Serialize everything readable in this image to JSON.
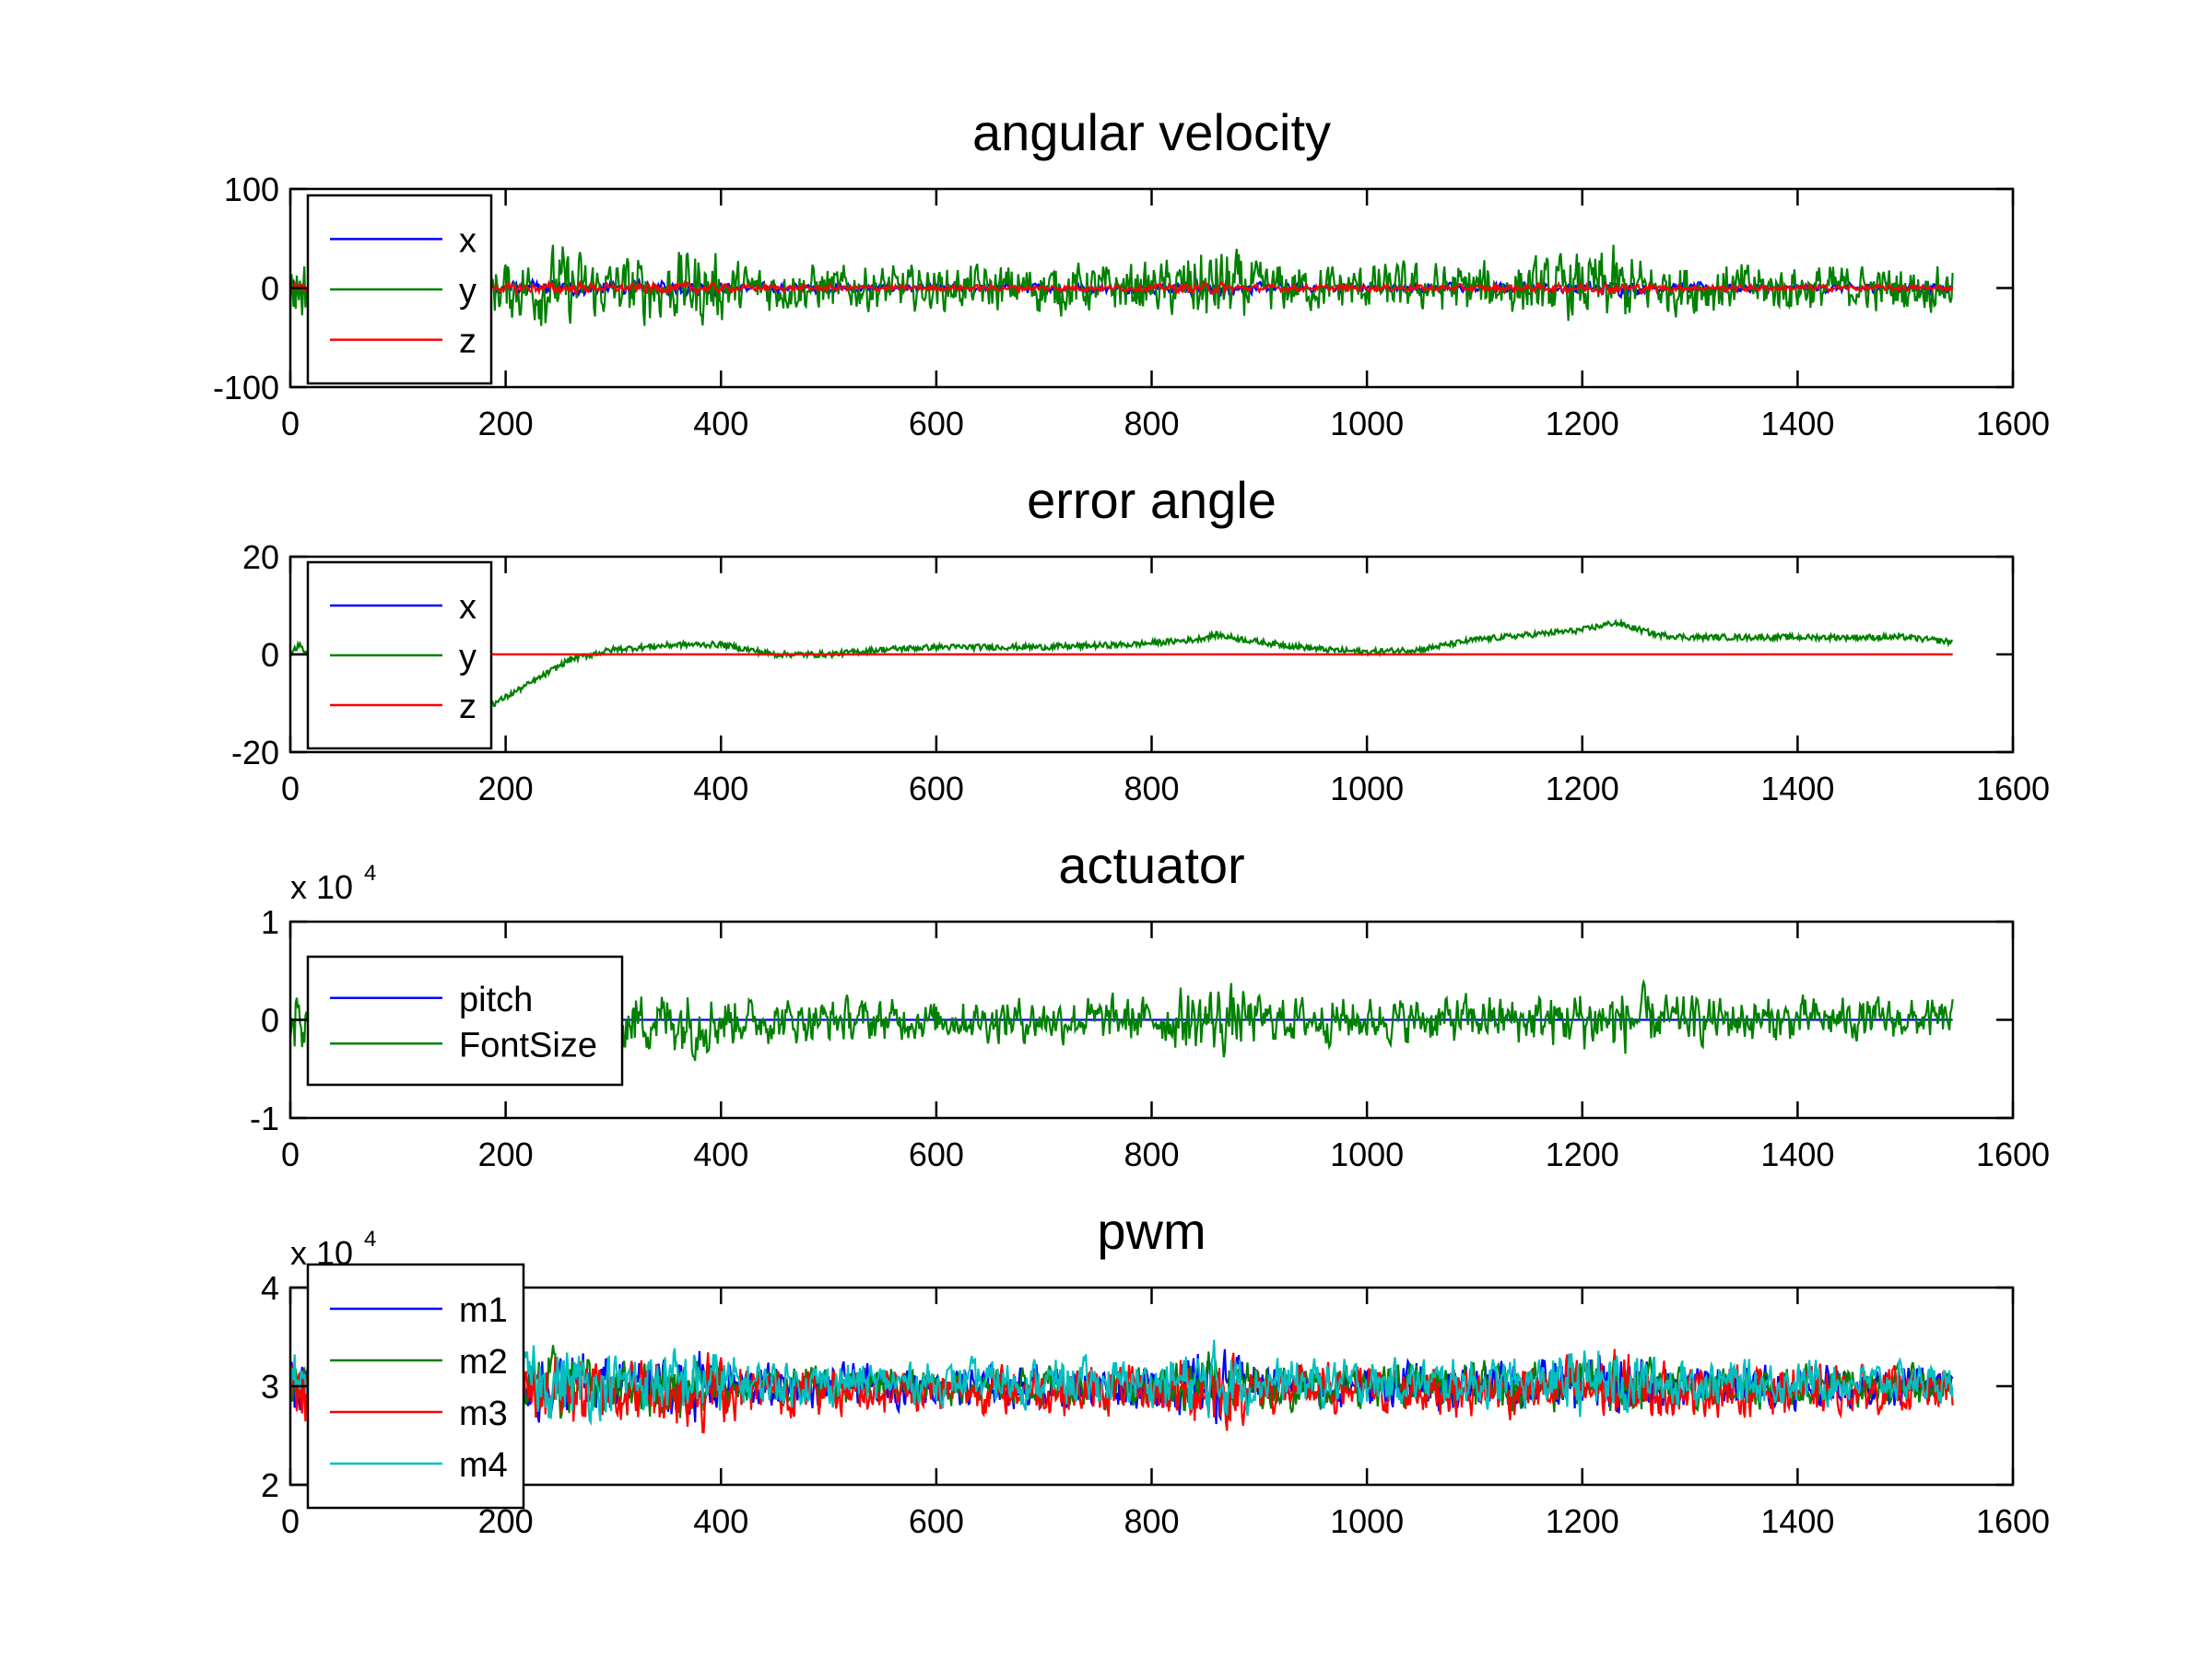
{
  "chart_data": [
    {
      "type": "line",
      "title": "angular velocity",
      "xlim": [
        0,
        1600
      ],
      "ylim": [
        -100,
        100
      ],
      "xticks": [
        "0",
        "200",
        "400",
        "600",
        "800",
        "1000",
        "1200",
        "1400",
        "1600"
      ],
      "yticks": [
        "-100",
        "0",
        "100"
      ],
      "ytick_values": [
        -100,
        0,
        100
      ],
      "exponent": null,
      "legend": {
        "placement": "top-left",
        "entries": [
          "x",
          "y",
          "z"
        ]
      },
      "n_samples": 1545,
      "series": [
        {
          "name": "x",
          "color": "#0000ff",
          "kind": "noise",
          "center": 0,
          "amplitude": 6
        },
        {
          "name": "y",
          "color": "#008000",
          "kind": "noise",
          "center": 0,
          "amplitude": 30
        },
        {
          "name": "z",
          "color": "#ff0000",
          "kind": "noise",
          "center": 0,
          "amplitude": 4
        }
      ]
    },
    {
      "type": "line",
      "title": "error angle",
      "xlim": [
        0,
        1600
      ],
      "ylim": [
        -20,
        20
      ],
      "xticks": [
        "0",
        "200",
        "400",
        "600",
        "800",
        "1000",
        "1200",
        "1400",
        "1600"
      ],
      "yticks": [
        "-20",
        "0",
        "20"
      ],
      "ytick_values": [
        -20,
        0,
        20
      ],
      "exponent": null,
      "legend": {
        "placement": "top-left",
        "entries": [
          "x",
          "y",
          "z"
        ]
      },
      "n_samples": 1545,
      "series": [
        {
          "name": "x",
          "color": "#0000ff",
          "kind": "trend",
          "points": [
            [
              0,
              0
            ],
            [
              1545,
              0
            ]
          ],
          "jitter": 0
        },
        {
          "name": "y",
          "color": "#008000",
          "kind": "trend",
          "points": [
            [
              0,
              0
            ],
            [
              8,
              2
            ],
            [
              15,
              0
            ],
            [
              60,
              -8
            ],
            [
              190,
              -10
            ],
            [
              230,
              -5
            ],
            [
              260,
              -1
            ],
            [
              300,
              1
            ],
            [
              360,
              2
            ],
            [
              400,
              2
            ],
            [
              450,
              0
            ],
            [
              500,
              0
            ],
            [
              550,
              1
            ],
            [
              600,
              1.5
            ],
            [
              700,
              1.5
            ],
            [
              780,
              2
            ],
            [
              840,
              3
            ],
            [
              860,
              4
            ],
            [
              900,
              2.5
            ],
            [
              960,
              1
            ],
            [
              1000,
              0.5
            ],
            [
              1050,
              1
            ],
            [
              1100,
              3
            ],
            [
              1150,
              4
            ],
            [
              1200,
              5
            ],
            [
              1230,
              6.5
            ],
            [
              1270,
              4
            ],
            [
              1300,
              3.5
            ],
            [
              1400,
              3.5
            ],
            [
              1500,
              3.5
            ],
            [
              1545,
              2.5
            ]
          ],
          "jitter": 0.6
        },
        {
          "name": "z",
          "color": "#ff0000",
          "kind": "trend",
          "points": [
            [
              0,
              0
            ],
            [
              1545,
              0
            ]
          ],
          "jitter": 0
        }
      ]
    },
    {
      "type": "line",
      "title": "actuator",
      "xlim": [
        0,
        1600
      ],
      "ylim": [
        -10000,
        10000
      ],
      "xticks": [
        "0",
        "200",
        "400",
        "600",
        "800",
        "1000",
        "1200",
        "1400",
        "1600"
      ],
      "yticks": [
        "-1",
        "0",
        "1"
      ],
      "ytick_values": [
        -10000,
        0,
        10000
      ],
      "exponent": {
        "base": "x 10",
        "power": "4"
      },
      "legend": {
        "placement": "top-left",
        "entries": [
          "pitch",
          "FontSize"
        ]
      },
      "n_samples": 1545,
      "series": [
        {
          "name": "pitch",
          "color": "#0000ff",
          "kind": "trend",
          "points": [
            [
              0,
              0
            ],
            [
              1545,
              0
            ]
          ],
          "jitter": 0
        },
        {
          "name": "FontSize",
          "color": "#008000",
          "kind": "noise",
          "center": 0,
          "amplitude": 2800
        }
      ]
    },
    {
      "type": "line",
      "title": "pwm",
      "xlim": [
        0,
        1600
      ],
      "ylim": [
        20000,
        40000
      ],
      "xticks": [
        "0",
        "200",
        "400",
        "600",
        "800",
        "1000",
        "1200",
        "1400",
        "1600"
      ],
      "yticks": [
        "2",
        "3",
        "4"
      ],
      "ytick_values": [
        20000,
        30000,
        40000
      ],
      "exponent": {
        "base": "x 10",
        "power": "4"
      },
      "legend": {
        "placement": "top-left",
        "entries": [
          "m1",
          "m2",
          "m3",
          "m4"
        ]
      },
      "n_samples": 1545,
      "series": [
        {
          "name": "m1",
          "color": "#0000ff",
          "kind": "noise",
          "center": 30000,
          "amplitude": 2600
        },
        {
          "name": "m2",
          "color": "#008000",
          "kind": "noise",
          "center": 30000,
          "amplitude": 2600
        },
        {
          "name": "m3",
          "color": "#ff0000",
          "kind": "noise",
          "center": 29600,
          "amplitude": 3000
        },
        {
          "name": "m4",
          "color": "#00bfbf",
          "kind": "noise",
          "center": 30400,
          "amplitude": 2800
        }
      ]
    }
  ],
  "noise_envelope": [
    [
      0,
      1.2
    ],
    [
      180,
      0.9
    ],
    [
      250,
      1.5
    ],
    [
      300,
      1.1
    ],
    [
      380,
      1.4
    ],
    [
      420,
      0.9
    ],
    [
      600,
      0.75
    ],
    [
      700,
      0.9
    ],
    [
      800,
      0.85
    ],
    [
      860,
      1.5
    ],
    [
      900,
      0.9
    ],
    [
      1000,
      0.85
    ],
    [
      1150,
      0.95
    ],
    [
      1230,
      1.4
    ],
    [
      1280,
      0.9
    ],
    [
      1400,
      0.85
    ],
    [
      1545,
      0.75
    ]
  ]
}
